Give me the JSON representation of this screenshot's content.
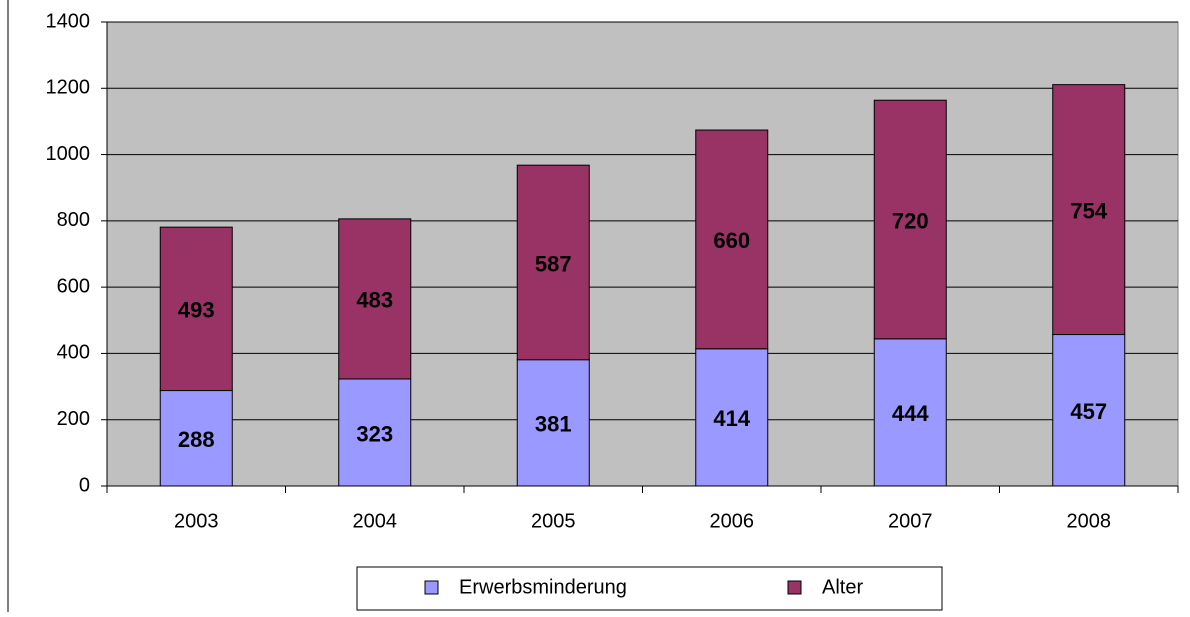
{
  "chart_data": {
    "type": "bar",
    "stacked": true,
    "categories": [
      "2003",
      "2004",
      "2005",
      "2006",
      "2007",
      "2008"
    ],
    "series": [
      {
        "name": "Erwerbsminderung",
        "color": "#9999ff",
        "values": [
          288,
          323,
          381,
          414,
          444,
          457
        ]
      },
      {
        "name": "Alter",
        "color": "#993366",
        "values": [
          493,
          483,
          587,
          660,
          720,
          754
        ]
      }
    ],
    "ylim": [
      0,
      1400
    ],
    "yticks": [
      0,
      200,
      400,
      600,
      800,
      1000,
      1200,
      1400
    ],
    "grid": true,
    "legend": "bottom",
    "plot_background": "#c0c0c0"
  }
}
